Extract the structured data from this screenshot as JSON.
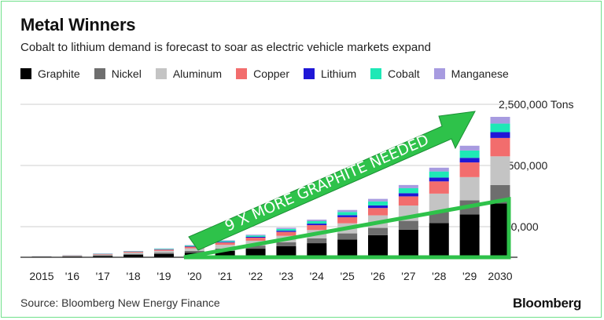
{
  "header": {
    "title": "Metal Winners",
    "subtitle": "Cobalt to lithium demand is forecast to soar as electric vehicle markets expand"
  },
  "footer": {
    "source": "Source: Bloomberg New Energy Finance",
    "brand": "Bloomberg"
  },
  "annotation": {
    "arrow_text": "9 X MORE GRAPHITE NEEDED",
    "arrow_color": "#2ec24a"
  },
  "chart_data": {
    "type": "bar",
    "stacked": true,
    "categories": [
      "2015",
      "'16",
      "'17",
      "'18",
      "'19",
      "'20",
      "'21",
      "'22",
      "'23",
      "'24",
      "'25",
      "'26",
      "'27",
      "'28",
      "'29",
      "2030"
    ],
    "y_tick_labels": [
      {
        "value": 2500000,
        "label": "2,500,000 Tons"
      },
      {
        "value": 1500000,
        "label": "1,500,000"
      },
      {
        "value": 500000,
        "label": "500,000"
      }
    ],
    "ylim": [
      0,
      2500000
    ],
    "grid": true,
    "legend_position": "top",
    "series": [
      {
        "name": "Graphite",
        "color": "#000000",
        "values": [
          8000,
          12000,
          22000,
          40000,
          55000,
          75000,
          105000,
          140000,
          180000,
          230000,
          290000,
          360000,
          450000,
          560000,
          700000,
          880000
        ]
      },
      {
        "name": "Nickel",
        "color": "#6e6e6e",
        "values": [
          3000,
          5000,
          9000,
          15000,
          20000,
          28000,
          38000,
          50000,
          65000,
          80000,
          100000,
          120000,
          145000,
          180000,
          230000,
          300000
        ]
      },
      {
        "name": "Aluminum",
        "color": "#c4c4c4",
        "values": [
          4000,
          8000,
          14000,
          22000,
          30000,
          42000,
          60000,
          80000,
          105000,
          135000,
          165000,
          205000,
          250000,
          300000,
          380000,
          470000
        ]
      },
      {
        "name": "Copper",
        "color": "#f26d6d",
        "values": [
          2000,
          5000,
          9000,
          14000,
          20000,
          28000,
          38000,
          50000,
          65000,
          80000,
          100000,
          120000,
          150000,
          200000,
          240000,
          300000
        ]
      },
      {
        "name": "Lithium",
        "color": "#1f17d6",
        "values": [
          500,
          1000,
          2000,
          3000,
          5000,
          7000,
          10000,
          14000,
          19000,
          25000,
          33000,
          42000,
          52000,
          62000,
          75000,
          95000
        ]
      },
      {
        "name": "Cobalt",
        "color": "#1ee8b6",
        "values": [
          1000,
          2000,
          4000,
          6000,
          9000,
          12000,
          16000,
          22000,
          30000,
          40000,
          52000,
          65000,
          82000,
          100000,
          120000,
          140000
        ]
      },
      {
        "name": "Manganese",
        "color": "#a79be0",
        "values": [
          500,
          1000,
          2000,
          3000,
          5000,
          7000,
          10000,
          14000,
          19000,
          25000,
          33000,
          42000,
          52000,
          62000,
          78000,
          110000
        ]
      }
    ]
  }
}
